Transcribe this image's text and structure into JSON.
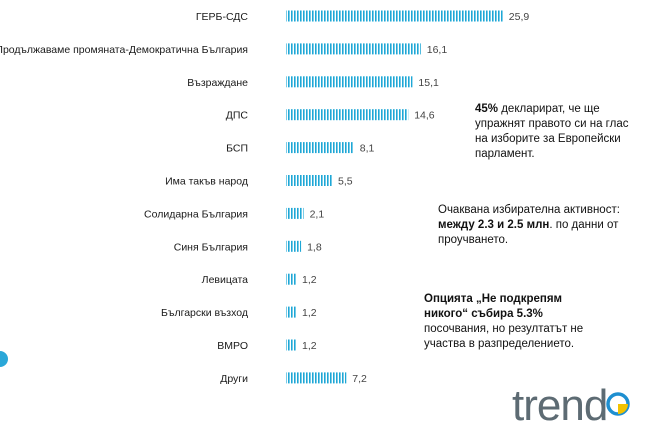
{
  "chart_data": {
    "type": "bar",
    "orientation": "horizontal",
    "categories": [
      "ГЕРБ-СДС",
      "Продължаваме промяната-Демократична България",
      "Възраждане",
      "ДПС",
      "БСП",
      "Има такъв народ",
      "Солидарна България",
      "Синя България",
      "Левицата",
      "Български възход",
      "ВМРО",
      "Други"
    ],
    "values": [
      25.9,
      16.1,
      15.1,
      14.6,
      8.1,
      5.5,
      2.1,
      1.8,
      1.2,
      1.2,
      1.2,
      7.2
    ],
    "value_labels": [
      "25,9",
      "16,1",
      "15,1",
      "14,6",
      "8,1",
      "5,5",
      "2,1",
      "1,8",
      "1,2",
      "1,2",
      "1,2",
      "7,2"
    ],
    "xlim": [
      0,
      27
    ],
    "title": "",
    "xlabel": "",
    "ylabel": "",
    "grid": false
  },
  "notes": {
    "note1": {
      "bold": "45%",
      "text": " декларират, че ще упражнят правото си на глас на изборите за Европейски парламент."
    },
    "note2": {
      "before": "Очаквана избирателна активност: ",
      "bold": "между 2.3 и 2.5 млн",
      "after": ". по данни от проучването."
    },
    "note3": {
      "bold": "Опцията „Не подкрепям никого“ събира 5.3%",
      "text": " посочвания, но резултатът не участва в разпределението."
    }
  },
  "logo": {
    "text": "trend"
  },
  "colors": {
    "bar": "#1ea7d6",
    "accent": "#2aa7d8",
    "logo_yellow": "#f2c200",
    "logo_blue": "#1e8fd0",
    "logo_gray": "#5d6b73"
  }
}
